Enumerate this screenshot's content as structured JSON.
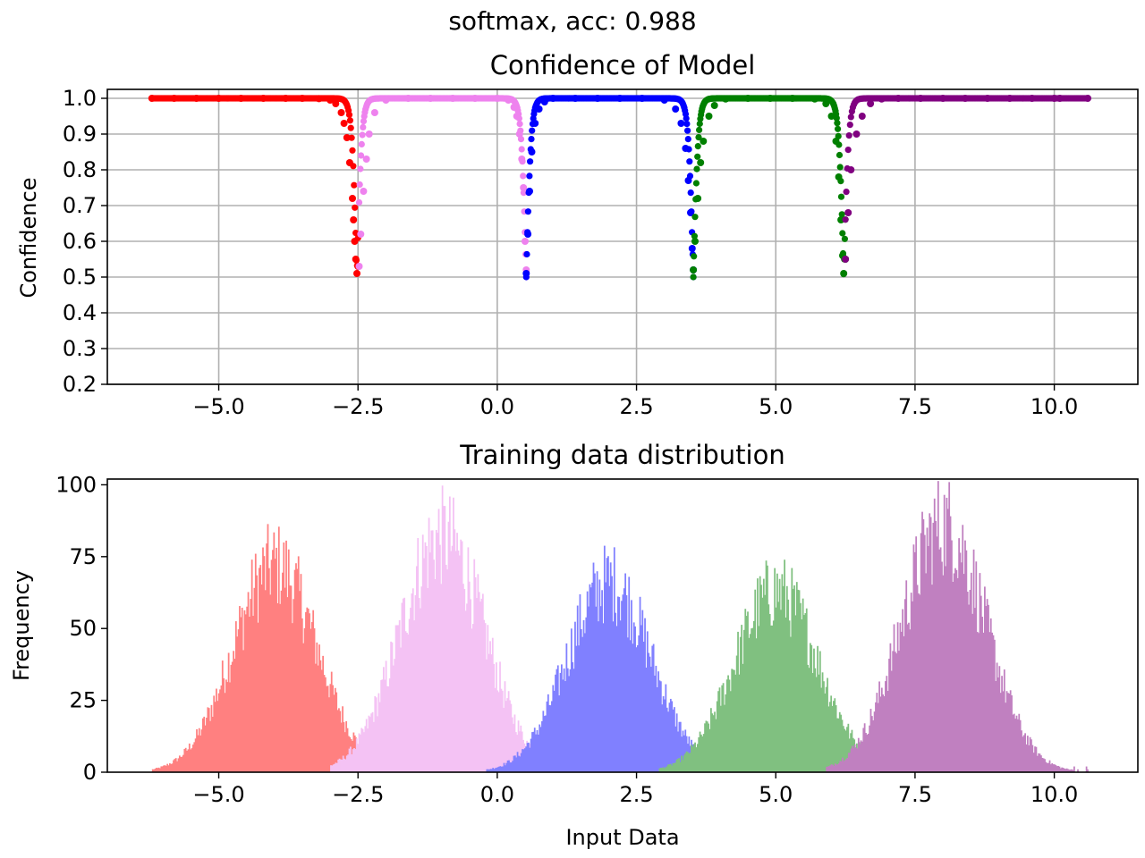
{
  "suptitle": "softmax, acc: 0.988",
  "chart_data": [
    {
      "type": "scatter",
      "title": "Confidence of Model",
      "xlabel": "",
      "ylabel": "Confidence",
      "xlim": [
        -7.0,
        11.5
      ],
      "ylim": [
        0.2,
        1.025
      ],
      "xticks": [
        -5.0,
        -2.5,
        0.0,
        2.5,
        5.0,
        7.5,
        10.0
      ],
      "xtick_labels": [
        "−5.0",
        "−2.5",
        "0.0",
        "2.5",
        "5.0",
        "7.5",
        "10.0"
      ],
      "yticks": [
        0.2,
        0.3,
        0.4,
        0.5,
        0.6,
        0.7,
        0.8,
        0.9,
        1.0
      ],
      "ytick_labels": [
        "0.2",
        "0.3",
        "0.4",
        "0.5",
        "0.6",
        "0.7",
        "0.8",
        "0.9",
        "1.0"
      ],
      "grid": true,
      "boundaries": [
        -2.52,
        0.52,
        3.52,
        6.22
      ],
      "series": [
        {
          "color": "#ff0000",
          "x": [
            -6.2,
            -5.8,
            -5.4,
            -5.0,
            -4.6,
            -4.2,
            -3.8,
            -3.5,
            -3.2,
            -3.0,
            -2.9,
            -2.8,
            -2.75,
            -2.7,
            -2.65,
            -2.6,
            -2.58,
            -2.56,
            -2.54,
            -2.52,
            -2.5
          ],
          "y": [
            1.0,
            1.0,
            1.0,
            1.0,
            1.0,
            1.0,
            1.0,
            1.0,
            0.999,
            0.995,
            0.985,
            0.96,
            0.93,
            0.89,
            0.82,
            0.72,
            0.66,
            0.6,
            0.55,
            0.51,
            0.53
          ]
        },
        {
          "color": "#ee82ee",
          "x": [
            -2.48,
            -2.45,
            -2.4,
            -2.35,
            -2.3,
            -2.2,
            -2.0,
            -1.6,
            -1.2,
            -0.8,
            -0.4,
            0.0,
            0.2,
            0.3,
            0.35,
            0.4,
            0.44,
            0.47,
            0.5,
            0.52
          ],
          "y": [
            0.53,
            0.62,
            0.74,
            0.83,
            0.9,
            0.96,
            0.995,
            1.0,
            1.0,
            1.0,
            1.0,
            1.0,
            0.995,
            0.975,
            0.95,
            0.9,
            0.83,
            0.75,
            0.6,
            0.52
          ]
        },
        {
          "color": "#0000ff",
          "x": [
            0.52,
            0.55,
            0.58,
            0.62,
            0.68,
            0.75,
            0.85,
            1.0,
            1.4,
            1.8,
            2.2,
            2.6,
            3.0,
            3.2,
            3.3,
            3.38,
            3.43,
            3.47,
            3.5,
            3.52
          ],
          "y": [
            0.51,
            0.62,
            0.74,
            0.85,
            0.93,
            0.97,
            0.99,
            1.0,
            1.0,
            1.0,
            1.0,
            1.0,
            0.995,
            0.97,
            0.93,
            0.86,
            0.77,
            0.68,
            0.58,
            0.52
          ]
        },
        {
          "color": "#008000",
          "x": [
            3.52,
            3.55,
            3.6,
            3.65,
            3.7,
            3.8,
            3.9,
            4.1,
            4.5,
            4.9,
            5.3,
            5.7,
            5.9,
            6.0,
            6.08,
            6.13,
            6.17,
            6.2,
            6.22,
            6.25
          ],
          "y": [
            0.52,
            0.6,
            0.72,
            0.82,
            0.88,
            0.95,
            0.98,
            0.998,
            1.0,
            1.0,
            1.0,
            0.998,
            0.985,
            0.95,
            0.88,
            0.78,
            0.66,
            0.56,
            0.51,
            0.55
          ]
        },
        {
          "color": "#800080",
          "x": [
            6.25,
            6.3,
            6.35,
            6.45,
            6.55,
            6.7,
            6.9,
            7.2,
            7.6,
            8.0,
            8.4,
            8.8,
            9.2,
            9.6,
            10.0,
            10.1,
            10.6
          ],
          "y": [
            0.55,
            0.68,
            0.8,
            0.9,
            0.95,
            0.985,
            0.998,
            1.0,
            1.0,
            1.0,
            1.0,
            1.0,
            1.0,
            1.0,
            1.0,
            1.0,
            1.0
          ]
        }
      ]
    },
    {
      "type": "bar",
      "title": "Training data distribution",
      "xlabel": "Input Data",
      "ylabel": "Frequency",
      "xlim": [
        -7.0,
        11.5
      ],
      "ylim": [
        0,
        102
      ],
      "xticks": [
        -5.0,
        -2.5,
        0.0,
        2.5,
        5.0,
        7.5,
        10.0
      ],
      "xtick_labels": [
        "−5.0",
        "−2.5",
        "0.0",
        "2.5",
        "5.0",
        "7.5",
        "10.0"
      ],
      "yticks": [
        0,
        25,
        50,
        75,
        100
      ],
      "ytick_labels": [
        "0",
        "25",
        "50",
        "75",
        "100"
      ],
      "grid": false,
      "series": [
        {
          "color": "#ff8080",
          "center": -4.0,
          "peak": 72,
          "range": [
            -6.2,
            -1.8
          ]
        },
        {
          "color": "#f4c2f4",
          "center": -1.0,
          "peak": 82,
          "range": [
            -3.0,
            1.0
          ]
        },
        {
          "color": "#8080ff",
          "center": 2.0,
          "peak": 66,
          "range": [
            -0.2,
            4.1
          ]
        },
        {
          "color": "#80c080",
          "center": 5.0,
          "peak": 63,
          "range": [
            2.9,
            7.1
          ]
        },
        {
          "color": "#c080c0",
          "center": 8.0,
          "peak": 86,
          "range": [
            5.9,
            10.6
          ]
        }
      ]
    }
  ]
}
